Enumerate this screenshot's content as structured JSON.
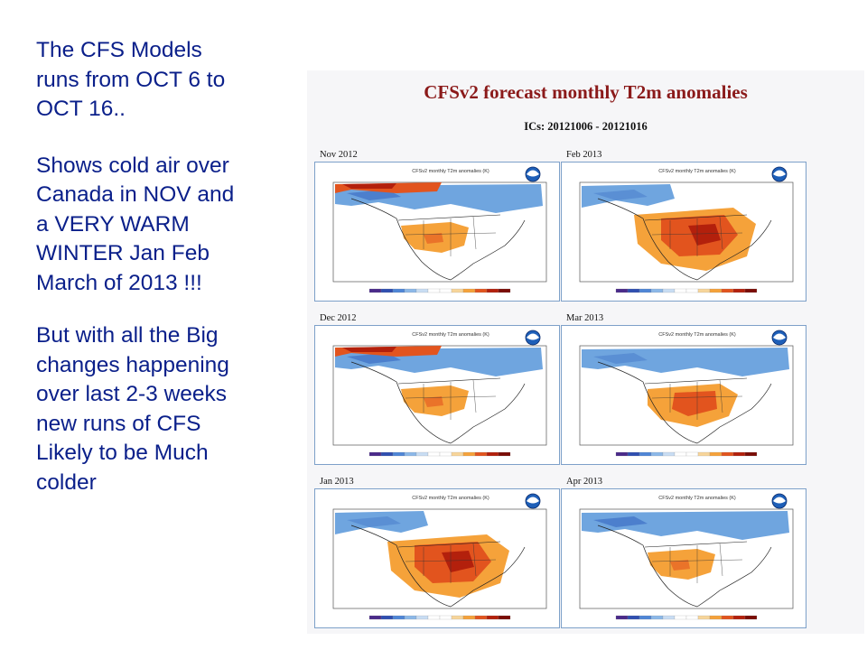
{
  "text": {
    "p1": "The CFS  Models\nruns  from OCT 6  to\nOCT 16..",
    "p2": "Shows  cold air  over\nCanada  in NOV and\na   VERY WARM\nWINTER    Jan  Feb\nMarch  of 2013 !!!",
    "p3": "But  with all the Big\nchanges  happening\nover last  2-3 weeks\nnew  runs of  CFS\nLikely  to be Much\ncolder"
  },
  "figure": {
    "title": "CFSv2 forecast monthly T2m anomalies",
    "subtitle": "ICs: 20121006 - 20121016",
    "panels": [
      {
        "month": "Nov 2012",
        "warmth": 1
      },
      {
        "month": "Feb 2013",
        "warmth": 3
      },
      {
        "month": "Dec 2012",
        "warmth": 1
      },
      {
        "month": "Mar 2013",
        "warmth": 2
      },
      {
        "month": "Jan 2013",
        "warmth": 3
      },
      {
        "month": "Apr 2013",
        "warmth": 1
      }
    ],
    "inner_title": "CFSv2 monthly T2m anomalies (K)",
    "colors": {
      "title": "#8b1a1a",
      "cold": "#6fa5df",
      "deep_cold": "#3d6fc4",
      "warm": "#f5a23a",
      "hot": "#e2541e",
      "very_hot": "#b3200c",
      "text": "#0a1f8a"
    }
  }
}
